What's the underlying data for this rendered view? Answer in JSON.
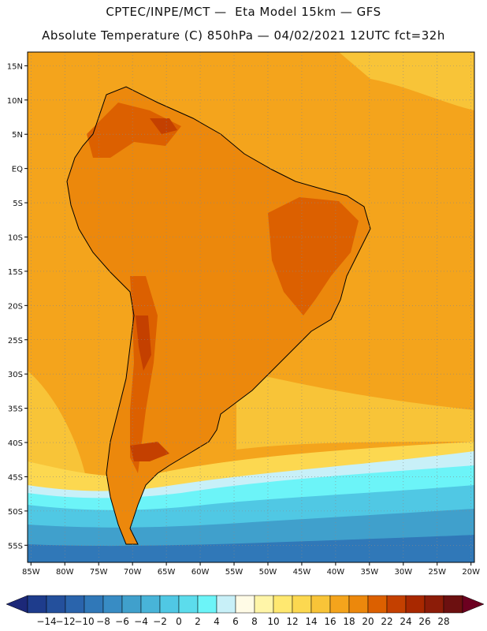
{
  "header": {
    "line1": "CPTEC/INPE/MCT —  Eta Model 15km — GFS",
    "line2": "Absolute Temperature (C) 850hPa — 04/02/2021 12UTC fct=32h"
  },
  "map": {
    "lat_labels": [
      "15N",
      "10N",
      "5N",
      "EQ",
      "5S",
      "10S",
      "15S",
      "20S",
      "25S",
      "30S",
      "35S",
      "40S",
      "45S",
      "50S",
      "55S"
    ],
    "lon_labels": [
      "85W",
      "80W",
      "75W",
      "70W",
      "65W",
      "60W",
      "55W",
      "50W",
      "45W",
      "40W",
      "35W",
      "30W",
      "25W",
      "20W"
    ],
    "lat_range": [
      17,
      -57.5
    ],
    "lon_range": [
      -85.5,
      -19.5
    ]
  },
  "colorbar": {
    "labels": [
      "-14",
      "-12",
      "-10",
      "-8",
      "-6",
      "-4",
      "-2",
      "0",
      "2",
      "4",
      "6",
      "8",
      "10",
      "12",
      "14",
      "16",
      "18",
      "20",
      "22",
      "24",
      "26",
      "28"
    ],
    "colors": [
      "#1e3c8c",
      "#24509c",
      "#2a64ac",
      "#3078b8",
      "#388cc4",
      "#40a0cc",
      "#48b4d8",
      "#50c8e4",
      "#5cdcec",
      "#6cf4f8",
      "#c8f0f8",
      "#fffbe6",
      "#fff5a8",
      "#ffe870",
      "#fcd850",
      "#f8c438",
      "#f4a41c",
      "#ec880c",
      "#dc6000",
      "#c44000",
      "#a82800",
      "#8c1c08",
      "#6c1010"
    ],
    "under_color": "#1c2878",
    "over_color": "#6c0020"
  },
  "palette": {
    "ocean_warm": "#f4a41c",
    "ocean_mid": "#f8c438",
    "land_base": "#ec880c",
    "land_hot": "#dc6000",
    "land_hotter": "#c44000",
    "south_cold1": "#c8f0f8",
    "south_cold2": "#6cf4f8",
    "south_cold3": "#50c8e4",
    "south_cold4": "#40a0cc",
    "south_cold5": "#3078b8"
  }
}
